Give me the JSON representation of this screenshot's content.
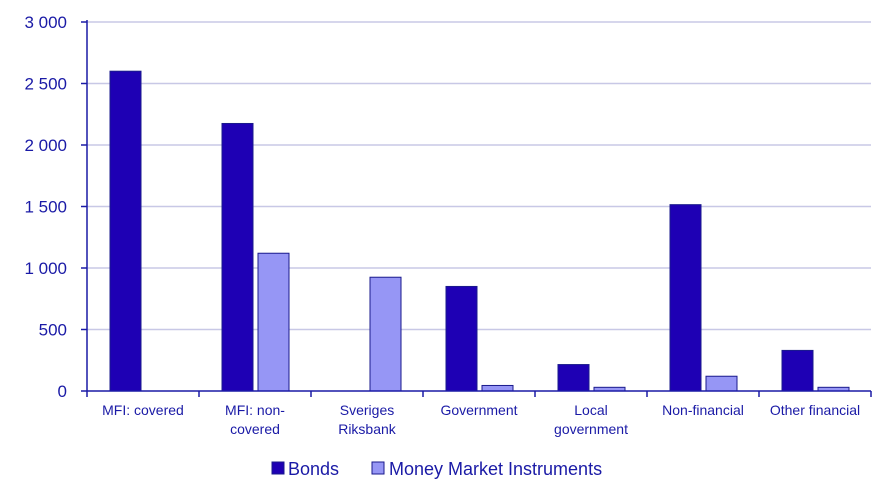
{
  "chart_data": {
    "type": "bar",
    "categories": [
      [
        "MFI: covered"
      ],
      [
        "MFI: non-",
        "covered"
      ],
      [
        "Sveriges",
        "Riksbank"
      ],
      [
        "Government"
      ],
      [
        "Local",
        "government"
      ],
      [
        "Non-financial"
      ],
      [
        "Other financial"
      ]
    ],
    "series": [
      {
        "name": "Bonds",
        "values": [
          2600,
          2175,
          0,
          850,
          215,
          1515,
          330
        ],
        "color": "#1e00b4"
      },
      {
        "name": "Money Market Instruments",
        "values": [
          0,
          1120,
          925,
          45,
          30,
          120,
          30
        ],
        "color": "#9696f5"
      }
    ],
    "ylim": [
      0,
      3000
    ],
    "yticks": [
      0,
      500,
      1000,
      1500,
      2000,
      2500,
      3000
    ],
    "ytick_labels": [
      "0",
      "500",
      "1 000",
      "1 500",
      "2 000",
      "2 500",
      "3 000"
    ],
    "grid": true,
    "legend_position": "bottom-center",
    "xlabel": "",
    "ylabel": "",
    "title": ""
  }
}
